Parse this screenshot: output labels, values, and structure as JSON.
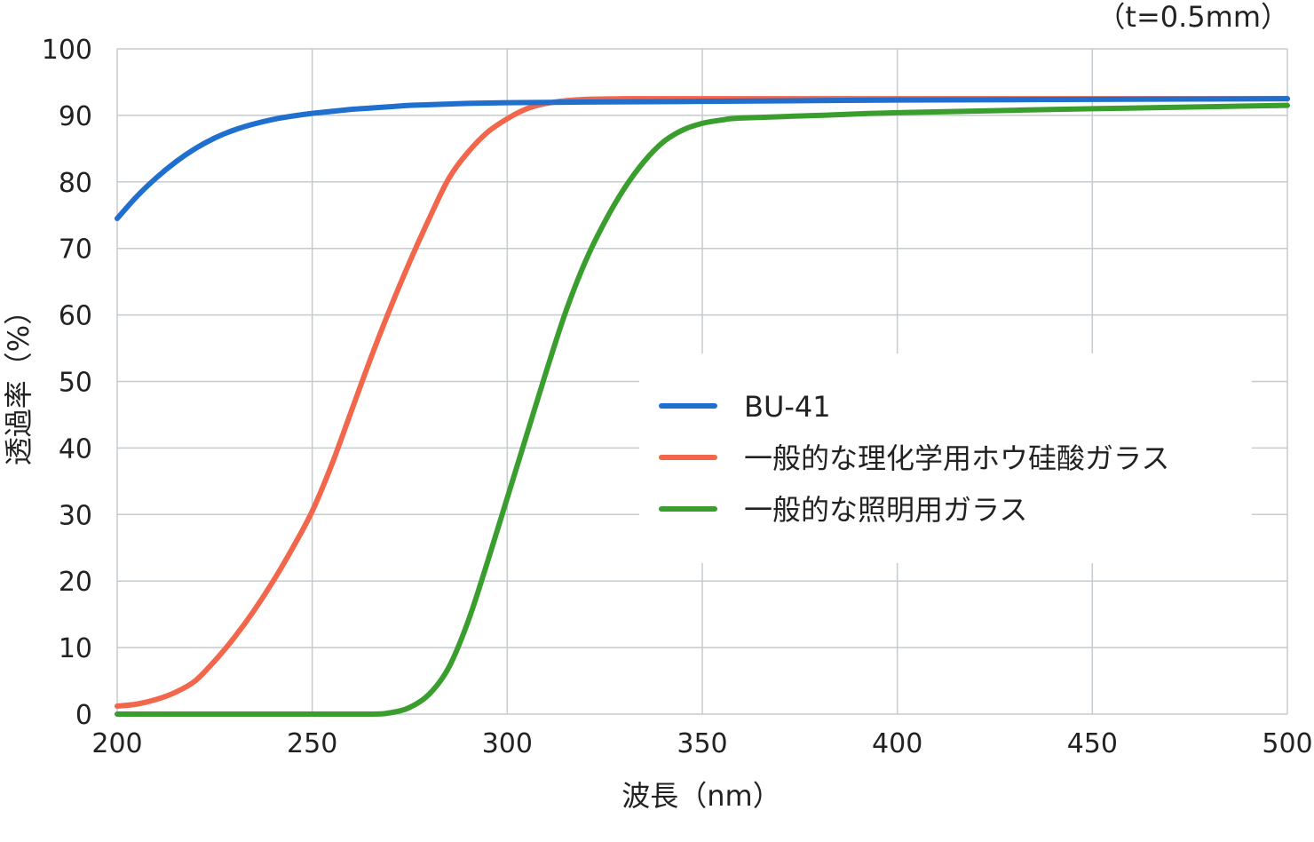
{
  "chart_data": {
    "type": "line",
    "annotation": "（t=0.5mm）",
    "xlabel": "波長（nm）",
    "ylabel": "透過率（%）",
    "xlim": [
      200,
      500
    ],
    "ylim": [
      0,
      100
    ],
    "xticks": [
      200,
      250,
      300,
      350,
      400,
      450,
      500
    ],
    "yticks": [
      0,
      10,
      20,
      30,
      40,
      50,
      60,
      70,
      80,
      90,
      100
    ],
    "grid": true,
    "legend_position": "center-right",
    "series": [
      {
        "name": "BU-41",
        "color": "#1f6fcf",
        "x": [
          200,
          205,
          210,
          215,
          220,
          225,
          230,
          235,
          240,
          245,
          250,
          255,
          260,
          265,
          270,
          275,
          280,
          285,
          290,
          300,
          320,
          350,
          400,
          450,
          500
        ],
        "y": [
          74.5,
          77.8,
          80.6,
          83.0,
          85.0,
          86.6,
          87.8,
          88.7,
          89.4,
          89.9,
          90.3,
          90.6,
          90.9,
          91.1,
          91.3,
          91.5,
          91.6,
          91.7,
          91.8,
          91.9,
          92.0,
          92.1,
          92.3,
          92.4,
          92.5
        ]
      },
      {
        "name": "一般的な理化学用ホウ硅酸ガラス",
        "color": "#f2664b",
        "x": [
          200,
          205,
          210,
          215,
          220,
          225,
          230,
          235,
          240,
          245,
          250,
          255,
          260,
          265,
          270,
          275,
          280,
          285,
          290,
          295,
          300,
          305,
          310,
          315,
          320,
          330,
          340,
          360,
          400,
          450,
          500
        ],
        "y": [
          1.2,
          1.5,
          2.2,
          3.3,
          5.0,
          8.0,
          11.5,
          15.5,
          20.0,
          25.0,
          30.5,
          37.5,
          45.5,
          53.5,
          61.0,
          68.0,
          74.5,
          80.5,
          84.5,
          87.5,
          89.5,
          91.0,
          91.8,
          92.2,
          92.4,
          92.5,
          92.5,
          92.5,
          92.5,
          92.5,
          92.5
        ]
      },
      {
        "name": "一般的な照明用ガラス",
        "color": "#3a9e2e",
        "x": [
          200,
          250,
          265,
          270,
          275,
          280,
          285,
          290,
          295,
          300,
          305,
          310,
          315,
          320,
          325,
          330,
          335,
          340,
          345,
          350,
          355,
          360,
          380,
          400,
          450,
          500
        ],
        "y": [
          0,
          0,
          0,
          0.2,
          1.0,
          3.0,
          7.0,
          14.0,
          23.0,
          32.5,
          42.0,
          51.5,
          60.5,
          68.0,
          74.0,
          79.0,
          83.0,
          86.0,
          87.8,
          88.8,
          89.3,
          89.6,
          90.0,
          90.4,
          91.0,
          91.5
        ]
      }
    ]
  }
}
